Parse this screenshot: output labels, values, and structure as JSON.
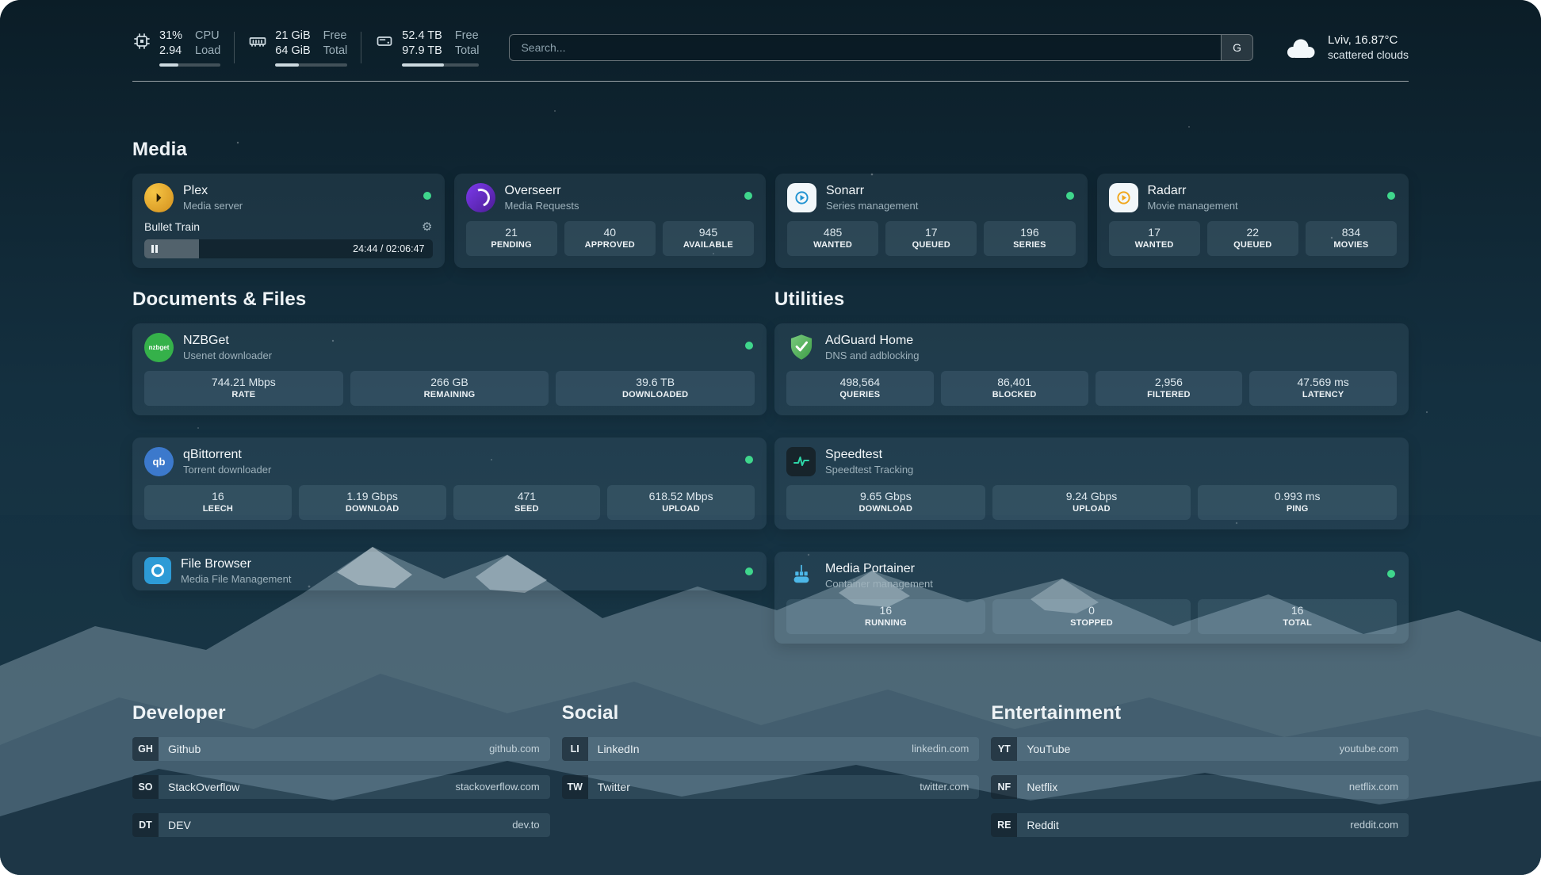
{
  "header": {
    "cpu": {
      "value": "31%",
      "load": "2.94",
      "label_top": "CPU",
      "label_bottom": "Load",
      "percent": 31
    },
    "memory": {
      "free": "21 GiB",
      "total": "64 GiB",
      "label_top": "Free",
      "label_bottom": "Total",
      "percent": 33
    },
    "disk": {
      "free": "52.4 TB",
      "total": "97.9 TB",
      "label_top": "Free",
      "label_bottom": "Total",
      "percent": 54
    },
    "search": {
      "placeholder": "Search...",
      "button_label": "G"
    },
    "weather": {
      "location": "Lviv, 16.87°C",
      "condition": "scattered clouds"
    }
  },
  "colors": {
    "accent_green": "#3fd68c",
    "background": "#10242f"
  },
  "media": {
    "heading": "Media",
    "plex": {
      "name": "Plex",
      "desc": "Media server",
      "status": "online",
      "now_playing": "Bullet Train",
      "time": "24:44 / 02:06:47",
      "progress_percent": 19
    },
    "overseerr": {
      "name": "Overseerr",
      "desc": "Media Requests",
      "status": "online",
      "stats": [
        {
          "value": "21",
          "label": "PENDING"
        },
        {
          "value": "40",
          "label": "APPROVED"
        },
        {
          "value": "945",
          "label": "AVAILABLE"
        }
      ]
    },
    "sonarr": {
      "name": "Sonarr",
      "desc": "Series management",
      "status": "online",
      "stats": [
        {
          "value": "485",
          "label": "WANTED"
        },
        {
          "value": "17",
          "label": "QUEUED"
        },
        {
          "value": "196",
          "label": "SERIES"
        }
      ]
    },
    "radarr": {
      "name": "Radarr",
      "desc": "Movie management",
      "status": "online",
      "stats": [
        {
          "value": "17",
          "label": "WANTED"
        },
        {
          "value": "22",
          "label": "QUEUED"
        },
        {
          "value": "834",
          "label": "MOVIES"
        }
      ]
    }
  },
  "documents": {
    "heading": "Documents & Files",
    "nzbget": {
      "name": "NZBGet",
      "desc": "Usenet downloader",
      "status": "online",
      "icon_text": "nzbget",
      "stats": [
        {
          "value": "744.21 Mbps",
          "label": "RATE"
        },
        {
          "value": "266 GB",
          "label": "REMAINING"
        },
        {
          "value": "39.6 TB",
          "label": "DOWNLOADED"
        }
      ]
    },
    "qbittorrent": {
      "name": "qBittorrent",
      "desc": "Torrent downloader",
      "status": "online",
      "icon_text": "qb",
      "stats": [
        {
          "value": "16",
          "label": "LEECH"
        },
        {
          "value": "1.19 Gbps",
          "label": "DOWNLOAD"
        },
        {
          "value": "471",
          "label": "SEED"
        },
        {
          "value": "618.52 Mbps",
          "label": "UPLOAD"
        }
      ]
    },
    "filebrowser": {
      "name": "File Browser",
      "desc": "Media File Management",
      "status": "online"
    }
  },
  "utilities": {
    "heading": "Utilities",
    "adguard": {
      "name": "AdGuard Home",
      "desc": "DNS and adblocking",
      "stats": [
        {
          "value": "498,564",
          "label": "QUERIES"
        },
        {
          "value": "86,401",
          "label": "BLOCKED"
        },
        {
          "value": "2,956",
          "label": "FILTERED"
        },
        {
          "value": "47.569 ms",
          "label": "LATENCY"
        }
      ]
    },
    "speedtest": {
      "name": "Speedtest",
      "desc": "Speedtest Tracking",
      "stats": [
        {
          "value": "9.65 Gbps",
          "label": "DOWNLOAD"
        },
        {
          "value": "9.24 Gbps",
          "label": "UPLOAD"
        },
        {
          "value": "0.993 ms",
          "label": "PING"
        }
      ]
    },
    "portainer": {
      "name": "Media Portainer",
      "desc": "Container management",
      "status": "online",
      "stats": [
        {
          "value": "16",
          "label": "RUNNING"
        },
        {
          "value": "0",
          "label": "STOPPED"
        },
        {
          "value": "16",
          "label": "TOTAL"
        }
      ]
    }
  },
  "bookmarks": {
    "developer": {
      "heading": "Developer",
      "items": [
        {
          "abbr": "GH",
          "name": "Github",
          "domain": "github.com"
        },
        {
          "abbr": "SO",
          "name": "StackOverflow",
          "domain": "stackoverflow.com"
        },
        {
          "abbr": "DT",
          "name": "DEV",
          "domain": "dev.to"
        }
      ]
    },
    "social": {
      "heading": "Social",
      "items": [
        {
          "abbr": "LI",
          "name": "LinkedIn",
          "domain": "linkedin.com"
        },
        {
          "abbr": "TW",
          "name": "Twitter",
          "domain": "twitter.com"
        }
      ]
    },
    "entertainment": {
      "heading": "Entertainment",
      "items": [
        {
          "abbr": "YT",
          "name": "YouTube",
          "domain": "youtube.com"
        },
        {
          "abbr": "NF",
          "name": "Netflix",
          "domain": "netflix.com"
        },
        {
          "abbr": "RE",
          "name": "Reddit",
          "domain": "reddit.com"
        }
      ]
    }
  }
}
